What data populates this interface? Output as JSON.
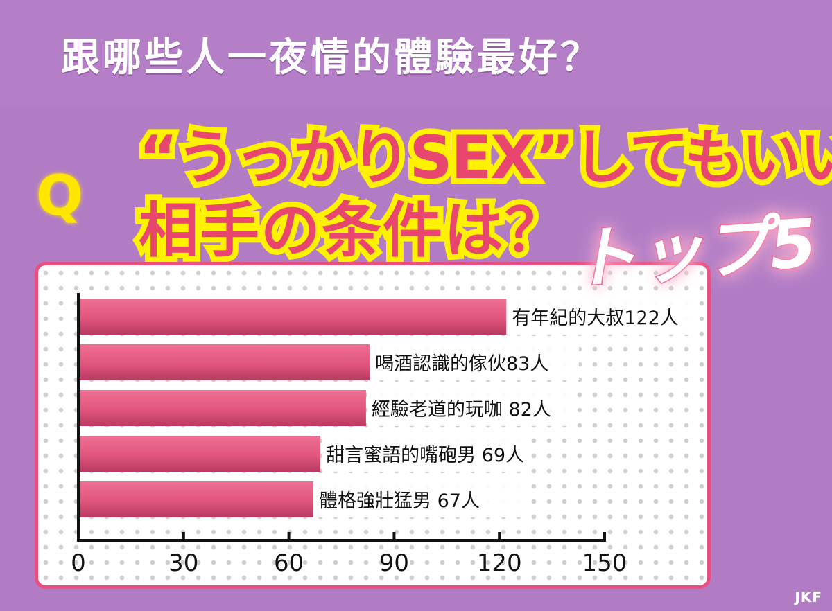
{
  "header": {
    "title": "跟哪些人一夜情的體驗最好？",
    "question_mark": "Q",
    "question_line1": "“うっかりSEX”してもいい",
    "question_line2": "相手の条件は？",
    "badge": "トップ5"
  },
  "watermark": "JKF",
  "colors": {
    "background": "#b27cc5",
    "bar": "#e0557e",
    "panel_border": "#ea4f7f",
    "highlight": "#fff200"
  },
  "chart_data": {
    "type": "bar",
    "orientation": "horizontal",
    "categories": [
      "有年紀的大叔",
      "喝酒認識的傢伙",
      "經驗老道的玩咖",
      "甜言蜜語的嘴砲男",
      "體格強壯猛男"
    ],
    "labels": [
      "有年紀的大叔122人",
      "喝酒認識的傢伙83人",
      "經驗老道的玩咖 82人",
      "甜言蜜語的嘴砲男 69人",
      "體格強壯猛男 67人"
    ],
    "values": [
      122,
      83,
      82,
      69,
      67
    ],
    "xlim": [
      0,
      150
    ],
    "xticks": [
      "0",
      "30",
      "60",
      "90",
      "120",
      "150"
    ],
    "grid": false
  }
}
